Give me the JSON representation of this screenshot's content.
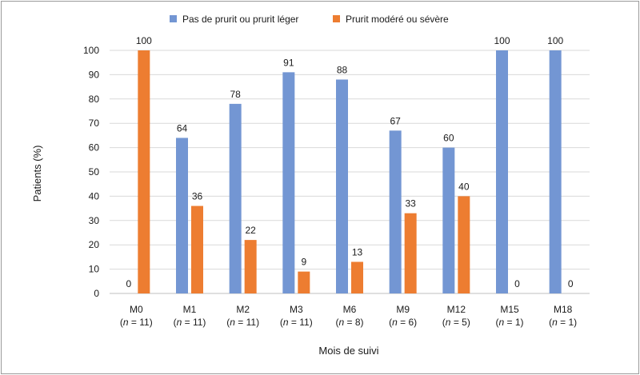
{
  "chart_data": {
    "type": "bar",
    "categories": [
      "M0",
      "M1",
      "M2",
      "M3",
      "M6",
      "M9",
      "M12",
      "M15",
      "M18"
    ],
    "category_n": [
      "(n = 11)",
      "(n = 11)",
      "(n = 11)",
      "(n = 11)",
      "(n = 8)",
      "(n = 6)",
      "(n = 5)",
      "(n = 1)",
      "(n = 1)"
    ],
    "series": [
      {
        "name": "Pas de prurit ou prurit léger",
        "color": "#7396d3",
        "values": [
          0,
          64,
          78,
          91,
          88,
          67,
          60,
          100,
          100
        ]
      },
      {
        "name": "Prurit modéré ou sévère",
        "color": "#ed7d31",
        "values": [
          100,
          36,
          22,
          9,
          13,
          33,
          40,
          0,
          0
        ]
      }
    ],
    "xlabel": "Mois de suivi",
    "ylabel": "Patients (%)",
    "ylim": [
      0,
      100
    ],
    "yticks": [
      0,
      10,
      20,
      30,
      40,
      50,
      60,
      70,
      80,
      90,
      100
    ],
    "grid": true,
    "legend": "top-center"
  }
}
